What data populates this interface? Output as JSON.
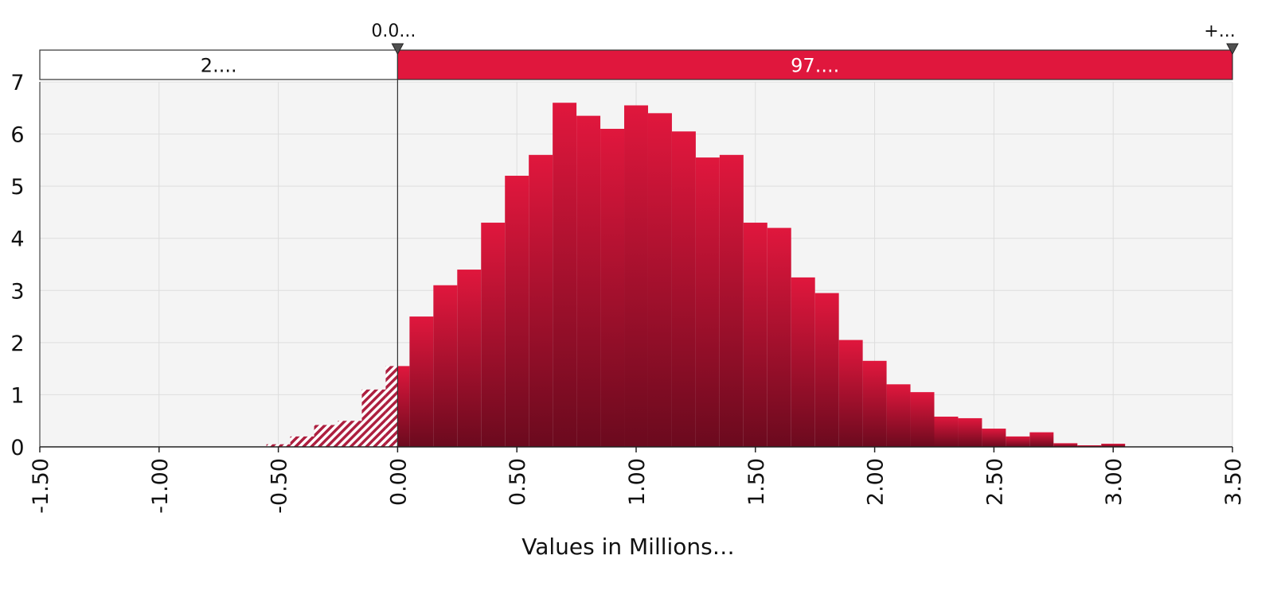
{
  "chart_data": {
    "type": "bar",
    "subtype": "histogram",
    "title": "",
    "xlabel": "Values in Millions…",
    "ylabel": "",
    "xlim": [
      -1.5,
      3.5
    ],
    "ylim": [
      0,
      7
    ],
    "x_ticks": [
      "-1.50",
      "-1.00",
      "-0.50",
      "0.00",
      "0.50",
      "1.00",
      "1.50",
      "2.00",
      "2.50",
      "3.00",
      "3.50"
    ],
    "y_ticks": [
      "0",
      "1",
      "2",
      "3",
      "4",
      "5",
      "6",
      "7"
    ],
    "grid": true,
    "bin_width": 0.1,
    "bins": [
      {
        "x0": -0.55,
        "x1": -0.45,
        "y": 0.05
      },
      {
        "x0": -0.45,
        "x1": -0.35,
        "y": 0.2
      },
      {
        "x0": -0.35,
        "x1": -0.25,
        "y": 0.42
      },
      {
        "x0": -0.25,
        "x1": -0.15,
        "y": 0.5
      },
      {
        "x0": -0.15,
        "x1": -0.05,
        "y": 1.1
      },
      {
        "x0": -0.05,
        "x1": 0.05,
        "y": 1.55
      },
      {
        "x0": 0.05,
        "x1": 0.15,
        "y": 2.5
      },
      {
        "x0": 0.15,
        "x1": 0.25,
        "y": 3.1
      },
      {
        "x0": 0.25,
        "x1": 0.35,
        "y": 3.4
      },
      {
        "x0": 0.35,
        "x1": 0.45,
        "y": 4.3
      },
      {
        "x0": 0.45,
        "x1": 0.55,
        "y": 5.2
      },
      {
        "x0": 0.55,
        "x1": 0.65,
        "y": 5.6
      },
      {
        "x0": 0.65,
        "x1": 0.75,
        "y": 6.6
      },
      {
        "x0": 0.75,
        "x1": 0.85,
        "y": 6.35
      },
      {
        "x0": 0.85,
        "x1": 0.95,
        "y": 6.1
      },
      {
        "x0": 0.95,
        "x1": 1.05,
        "y": 6.55
      },
      {
        "x0": 1.05,
        "x1": 1.15,
        "y": 6.4
      },
      {
        "x0": 1.15,
        "x1": 1.25,
        "y": 6.05
      },
      {
        "x0": 1.25,
        "x1": 1.35,
        "y": 5.55
      },
      {
        "x0": 1.35,
        "x1": 1.45,
        "y": 5.6
      },
      {
        "x0": 1.45,
        "x1": 1.55,
        "y": 4.3
      },
      {
        "x0": 1.55,
        "x1": 1.65,
        "y": 4.2
      },
      {
        "x0": 1.65,
        "x1": 1.75,
        "y": 3.25
      },
      {
        "x0": 1.75,
        "x1": 1.85,
        "y": 2.95
      },
      {
        "x0": 1.85,
        "x1": 1.95,
        "y": 2.05
      },
      {
        "x0": 1.95,
        "x1": 2.05,
        "y": 1.65
      },
      {
        "x0": 2.05,
        "x1": 2.15,
        "y": 1.2
      },
      {
        "x0": 2.15,
        "x1": 2.25,
        "y": 1.05
      },
      {
        "x0": 2.25,
        "x1": 2.35,
        "y": 0.58
      },
      {
        "x0": 2.35,
        "x1": 2.45,
        "y": 0.55
      },
      {
        "x0": 2.45,
        "x1": 2.55,
        "y": 0.35
      },
      {
        "x0": 2.55,
        "x1": 2.65,
        "y": 0.2
      },
      {
        "x0": 2.65,
        "x1": 2.75,
        "y": 0.28
      },
      {
        "x0": 2.75,
        "x1": 2.85,
        "y": 0.07
      },
      {
        "x0": 2.85,
        "x1": 2.95,
        "y": 0.03
      },
      {
        "x0": 2.95,
        "x1": 3.05,
        "y": 0.06
      }
    ],
    "threshold": {
      "x": 0.0,
      "left_label": "2....",
      "right_label": "97....",
      "marker_label_left": "0.0...",
      "marker_label_right": "+..."
    },
    "colors": {
      "bar_top": "#e0173d",
      "bar_bottom": "#6b0a1e",
      "hatch": "#ad1f3f",
      "plot_bg": "#f4f4f4",
      "grid": "#dddddd",
      "marker": "#505050"
    }
  }
}
